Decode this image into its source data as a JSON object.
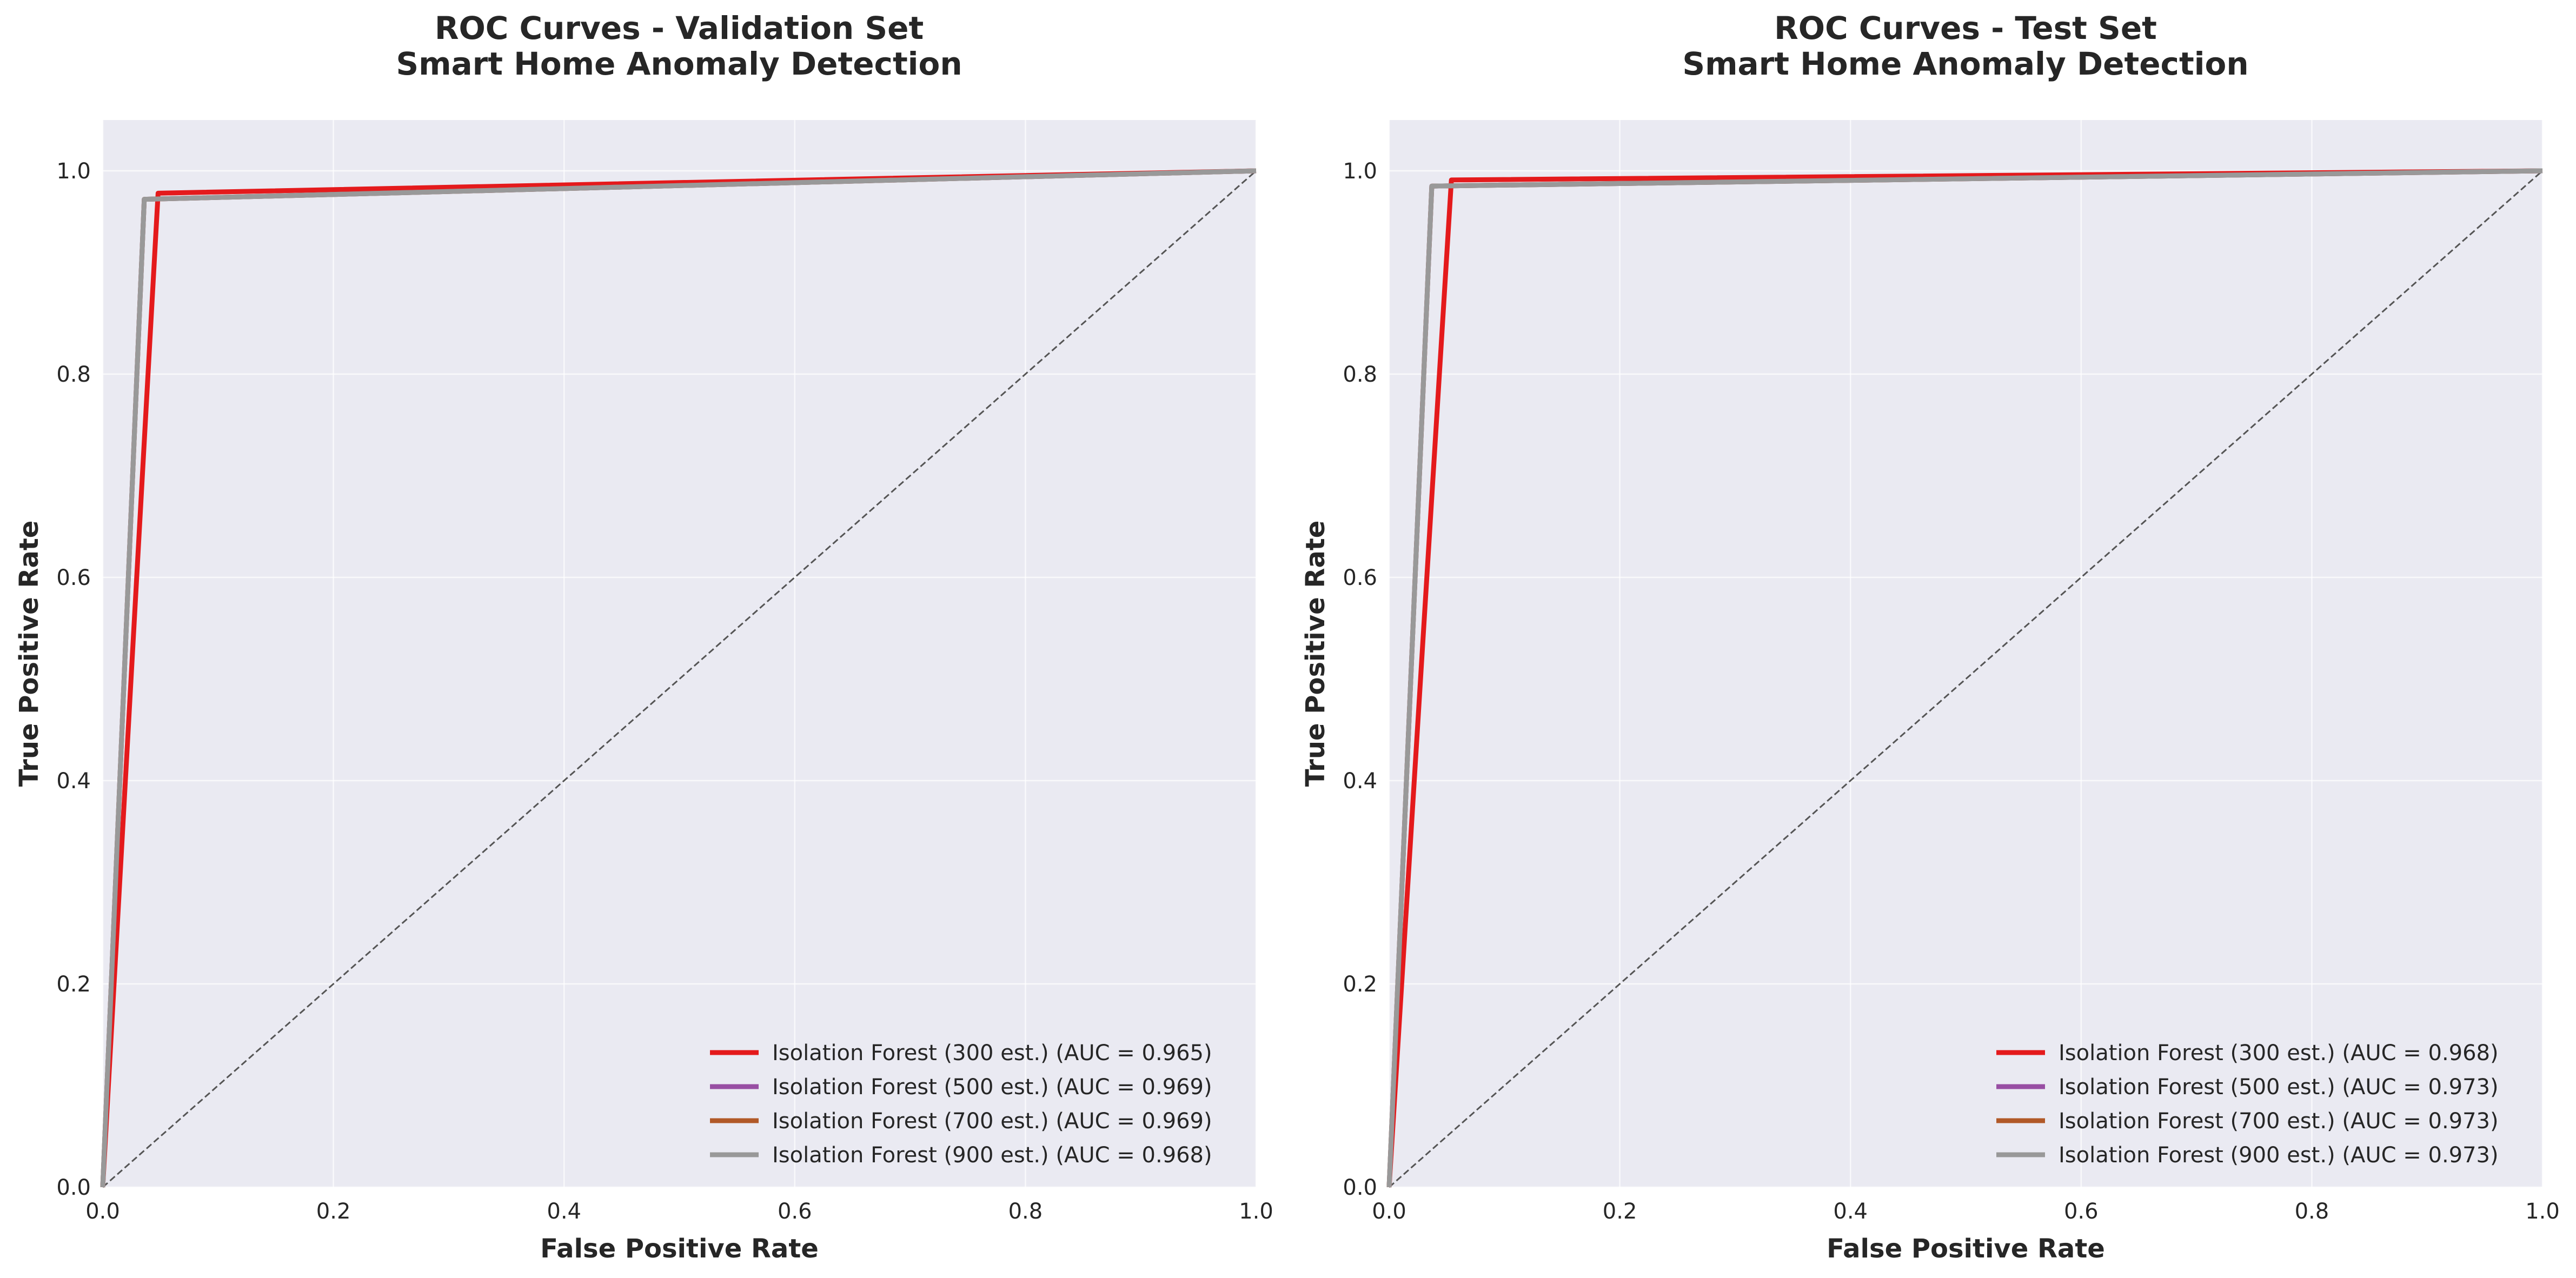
{
  "chart_data": [
    {
      "type": "line",
      "title_line1": "ROC Curves - Validation Set",
      "title_line2": "Smart Home Anomaly Detection",
      "xlabel": "False Positive Rate",
      "ylabel": "True Positive Rate",
      "xlim": [
        0.0,
        1.0
      ],
      "ylim": [
        0.0,
        1.05
      ],
      "xticks": [
        "0.0",
        "0.2",
        "0.4",
        "0.6",
        "0.8",
        "1.0"
      ],
      "yticks": [
        "0.0",
        "0.2",
        "0.4",
        "0.6",
        "0.8",
        "1.0"
      ],
      "grid": true,
      "legend_position": "lower-right",
      "diagonal": true,
      "series": [
        {
          "name": "Isolation Forest (300 est.) (AUC = 0.965)",
          "color": "#e41a1c",
          "x": [
            0.0,
            0.048,
            1.0
          ],
          "y": [
            0.0,
            0.978,
            1.0
          ]
        },
        {
          "name": "Isolation Forest (500 est.) (AUC = 0.969)",
          "color": "#984ea3",
          "x": [
            0.0,
            0.036,
            1.0
          ],
          "y": [
            0.0,
            0.972,
            1.0
          ]
        },
        {
          "name": "Isolation Forest (700 est.) (AUC = 0.969)",
          "color": "#b15928",
          "x": [
            0.0,
            0.036,
            1.0
          ],
          "y": [
            0.0,
            0.972,
            1.0
          ]
        },
        {
          "name": "Isolation Forest (900 est.) (AUC = 0.968)",
          "color": "#999999",
          "x": [
            0.0,
            0.036,
            1.0
          ],
          "y": [
            0.0,
            0.972,
            1.0
          ]
        }
      ]
    },
    {
      "type": "line",
      "title_line1": "ROC Curves - Test Set",
      "title_line2": "Smart Home Anomaly Detection",
      "xlabel": "False Positive Rate",
      "ylabel": "True Positive Rate",
      "xlim": [
        0.0,
        1.0
      ],
      "ylim": [
        0.0,
        1.05
      ],
      "xticks": [
        "0.0",
        "0.2",
        "0.4",
        "0.6",
        "0.8",
        "1.0"
      ],
      "yticks": [
        "0.0",
        "0.2",
        "0.4",
        "0.6",
        "0.8",
        "1.0"
      ],
      "grid": true,
      "legend_position": "lower-right",
      "diagonal": true,
      "series": [
        {
          "name": "Isolation Forest (300 est.) (AUC = 0.968)",
          "color": "#e41a1c",
          "x": [
            0.0,
            0.054,
            1.0
          ],
          "y": [
            0.0,
            0.991,
            1.0
          ]
        },
        {
          "name": "Isolation Forest (500 est.) (AUC = 0.973)",
          "color": "#984ea3",
          "x": [
            0.0,
            0.037,
            1.0
          ],
          "y": [
            0.0,
            0.985,
            1.0
          ]
        },
        {
          "name": "Isolation Forest (700 est.) (AUC = 0.973)",
          "color": "#b15928",
          "x": [
            0.0,
            0.037,
            1.0
          ],
          "y": [
            0.0,
            0.985,
            1.0
          ]
        },
        {
          "name": "Isolation Forest (900 est.) (AUC = 0.973)",
          "color": "#999999",
          "x": [
            0.0,
            0.037,
            1.0
          ],
          "y": [
            0.0,
            0.985,
            1.0
          ]
        }
      ]
    }
  ],
  "style": {
    "plot_background": "#eaeaf2",
    "grid_color": "#ffffff",
    "diagonal_color": "#555555",
    "text_color": "#262626"
  }
}
